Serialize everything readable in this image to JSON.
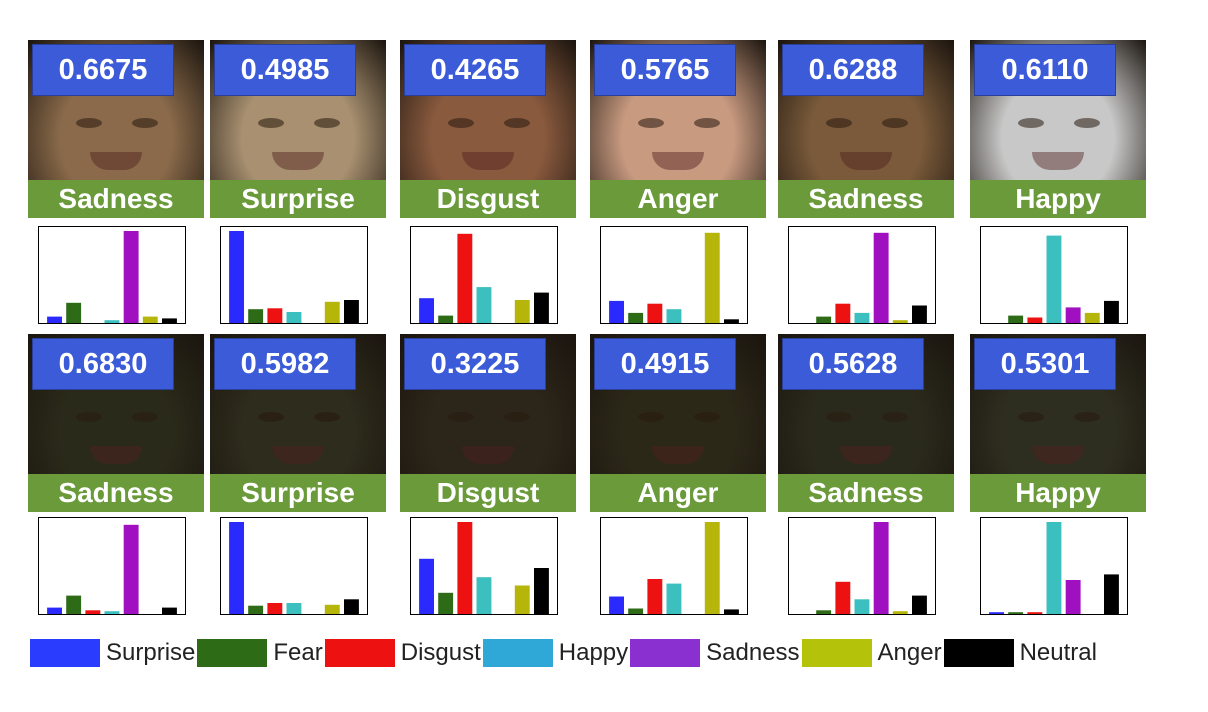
{
  "emotions": [
    "Surprise",
    "Fear",
    "Disgust",
    "Happy",
    "Sadness",
    "Anger",
    "Neutral"
  ],
  "emotion_colors": [
    "#2a2aff",
    "#2e6b16",
    "#ee1111",
    "#3bbfbf",
    "#a010c0",
    "#b5b50a",
    "#000000"
  ],
  "legend_colors": [
    "#2a3dff",
    "#2e6b16",
    "#ee1111",
    "#2fa8d8",
    "#8a2fd0",
    "#b5c20a",
    "#000000"
  ],
  "rows": [
    {
      "panels": [
        {
          "score": "0.6675",
          "label": "Sadness",
          "tone": "#8a6a4a"
        },
        {
          "score": "0.4985",
          "label": "Surprise",
          "tone": "#a89070"
        },
        {
          "score": "0.4265",
          "label": "Disgust",
          "tone": "#8a5a3e"
        },
        {
          "score": "0.5765",
          "label": "Anger",
          "tone": "#c89a80"
        },
        {
          "score": "0.6288",
          "label": "Sadness",
          "tone": "#7a5a3a"
        },
        {
          "score": "0.6110",
          "label": "Happy",
          "tone": "#c8c8c8"
        }
      ]
    },
    {
      "panels": [
        {
          "score": "0.6830",
          "label": "Sadness",
          "tone": "#2a2a1a"
        },
        {
          "score": "0.5982",
          "label": "Surprise",
          "tone": "#2e2c1c"
        },
        {
          "score": "0.3225",
          "label": "Disgust",
          "tone": "#2c261a"
        },
        {
          "score": "0.4915",
          "label": "Anger",
          "tone": "#2c2818"
        },
        {
          "score": "0.5628",
          "label": "Sadness",
          "tone": "#2a2a1c"
        },
        {
          "score": "0.5301",
          "label": "Happy",
          "tone": "#2e2e20"
        }
      ]
    }
  ],
  "chart_data": [
    {
      "type": "bar",
      "categories": [
        "Surprise",
        "Fear",
        "Disgust",
        "Happy",
        "Sadness",
        "Anger",
        "Neutral"
      ],
      "values": [
        0.07,
        0.22,
        0.0,
        0.03,
        1.0,
        0.07,
        0.05
      ],
      "ylim": [
        0,
        1
      ]
    },
    {
      "type": "bar",
      "categories": [
        "Surprise",
        "Fear",
        "Disgust",
        "Happy",
        "Sadness",
        "Anger",
        "Neutral"
      ],
      "values": [
        1.0,
        0.15,
        0.16,
        0.12,
        0.0,
        0.23,
        0.25
      ],
      "ylim": [
        0,
        1
      ]
    },
    {
      "type": "bar",
      "categories": [
        "Surprise",
        "Fear",
        "Disgust",
        "Happy",
        "Sadness",
        "Anger",
        "Neutral"
      ],
      "values": [
        0.27,
        0.08,
        0.97,
        0.39,
        0.0,
        0.25,
        0.33
      ],
      "ylim": [
        0,
        1
      ]
    },
    {
      "type": "bar",
      "categories": [
        "Surprise",
        "Fear",
        "Disgust",
        "Happy",
        "Sadness",
        "Anger",
        "Neutral"
      ],
      "values": [
        0.24,
        0.11,
        0.21,
        0.15,
        0.0,
        0.98,
        0.04
      ],
      "ylim": [
        0,
        1
      ]
    },
    {
      "type": "bar",
      "categories": [
        "Surprise",
        "Fear",
        "Disgust",
        "Happy",
        "Sadness",
        "Anger",
        "Neutral"
      ],
      "values": [
        0.0,
        0.07,
        0.21,
        0.11,
        0.98,
        0.03,
        0.19
      ],
      "ylim": [
        0,
        1
      ]
    },
    {
      "type": "bar",
      "categories": [
        "Surprise",
        "Fear",
        "Disgust",
        "Happy",
        "Sadness",
        "Anger",
        "Neutral"
      ],
      "values": [
        0.0,
        0.08,
        0.06,
        0.95,
        0.17,
        0.11,
        0.24
      ],
      "ylim": [
        0,
        1
      ]
    },
    {
      "type": "bar",
      "categories": [
        "Surprise",
        "Fear",
        "Disgust",
        "Happy",
        "Sadness",
        "Anger",
        "Neutral"
      ],
      "values": [
        0.07,
        0.2,
        0.04,
        0.03,
        0.97,
        0.0,
        0.07
      ],
      "ylim": [
        0,
        1
      ]
    },
    {
      "type": "bar",
      "categories": [
        "Surprise",
        "Fear",
        "Disgust",
        "Happy",
        "Sadness",
        "Anger",
        "Neutral"
      ],
      "values": [
        1.0,
        0.09,
        0.12,
        0.12,
        0.0,
        0.1,
        0.16
      ],
      "ylim": [
        0,
        1
      ]
    },
    {
      "type": "bar",
      "categories": [
        "Surprise",
        "Fear",
        "Disgust",
        "Happy",
        "Sadness",
        "Anger",
        "Neutral"
      ],
      "values": [
        0.6,
        0.23,
        1.0,
        0.4,
        0.0,
        0.31,
        0.5
      ],
      "ylim": [
        0,
        1
      ]
    },
    {
      "type": "bar",
      "categories": [
        "Surprise",
        "Fear",
        "Disgust",
        "Happy",
        "Sadness",
        "Anger",
        "Neutral"
      ],
      "values": [
        0.19,
        0.06,
        0.38,
        0.33,
        0.0,
        1.0,
        0.05
      ],
      "ylim": [
        0,
        1
      ]
    },
    {
      "type": "bar",
      "categories": [
        "Surprise",
        "Fear",
        "Disgust",
        "Happy",
        "Sadness",
        "Anger",
        "Neutral"
      ],
      "values": [
        0.0,
        0.04,
        0.35,
        0.16,
        1.0,
        0.03,
        0.2
      ],
      "ylim": [
        0,
        1
      ]
    },
    {
      "type": "bar",
      "categories": [
        "Surprise",
        "Fear",
        "Disgust",
        "Happy",
        "Sadness",
        "Anger",
        "Neutral"
      ],
      "values": [
        0.02,
        0.02,
        0.02,
        1.0,
        0.37,
        0.0,
        0.43
      ],
      "ylim": [
        0,
        1
      ]
    }
  ]
}
